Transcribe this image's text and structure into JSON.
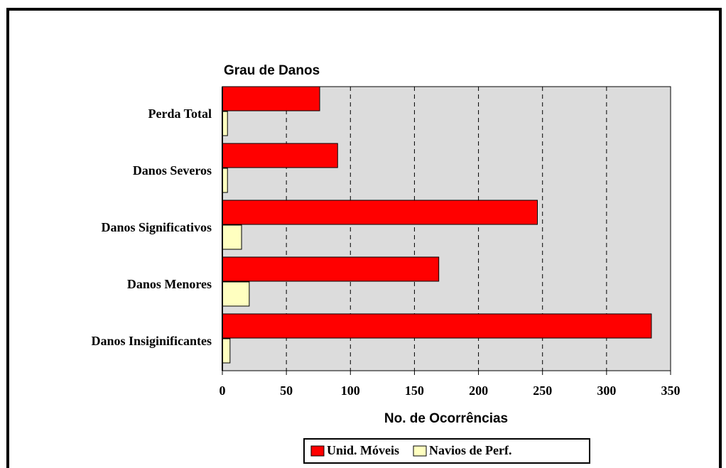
{
  "chart_data": {
    "type": "bar",
    "orientation": "horizontal",
    "title": "Grau de Danos",
    "x_label": "No. de Ocorrências",
    "categories": [
      "Perda Total",
      "Danos Severos",
      "Danos Significativos",
      "Danos Menores",
      "Danos Insiginificantes"
    ],
    "series": [
      {
        "name": "Unid. Móveis",
        "color": "#ff0000",
        "values": [
          76,
          90,
          246,
          169,
          335
        ]
      },
      {
        "name": "Navios de Perf.",
        "color": "#ffffc0",
        "values": [
          4,
          4,
          15,
          21,
          6
        ]
      }
    ],
    "xlim": [
      0,
      350
    ],
    "xticks": [
      0,
      50,
      100,
      150,
      200,
      250,
      300,
      350
    ],
    "grid": true
  }
}
